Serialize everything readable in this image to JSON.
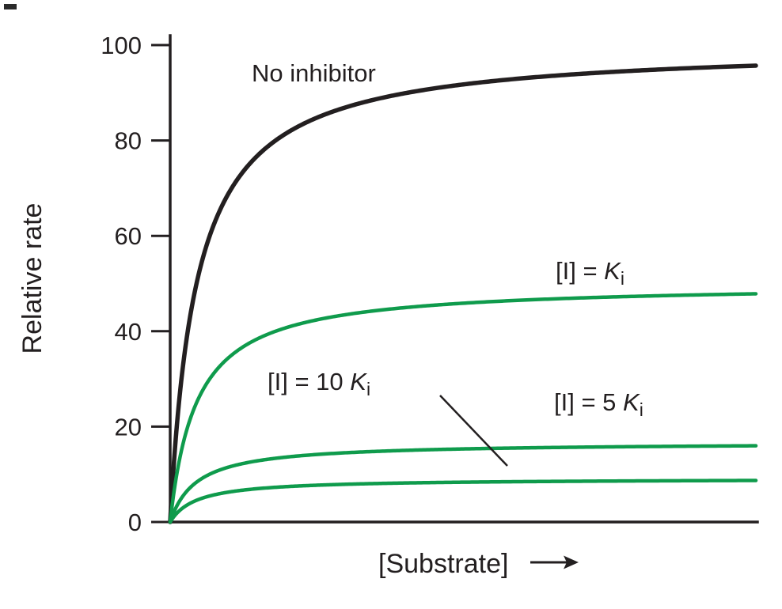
{
  "chart_data": {
    "type": "line",
    "title": "",
    "xlabel": "[Substrate]",
    "ylabel": "Relative rate",
    "xlim": [
      0,
      1
    ],
    "ylim": [
      0,
      100
    ],
    "yticks": [
      0,
      20,
      40,
      60,
      80,
      100
    ],
    "xticks": [],
    "grid": false,
    "legend_position": "inline-curve-labels",
    "curve_model": "michaelis-menten: v = vmax * s / (km + s), s = normalized [Substrate] 0..1",
    "series": [
      {
        "id": "no-inhibitor",
        "name": "No inhibitor",
        "vmax": 100,
        "km": 0.045,
        "color": "#231f20",
        "stroke_width": 5.5
      },
      {
        "id": "i-equals-ki",
        "name": "[I] = Ki",
        "vmax": 50,
        "km": 0.045,
        "color": "#0f9b4c",
        "stroke_width": 4.5
      },
      {
        "id": "i-equals-5ki",
        "name": "[I] = 5 Ki",
        "vmax": 16.7,
        "km": 0.045,
        "color": "#0f9b4c",
        "stroke_width": 4.5
      },
      {
        "id": "i-equals-10ki",
        "name": "[I] = 10 Ki",
        "vmax": 9.1,
        "km": 0.045,
        "color": "#0f9b4c",
        "stroke_width": 4.5
      }
    ]
  },
  "axes": {
    "y_title": "Relative rate",
    "x_title": "[Substrate]",
    "y_tick_labels": [
      "0",
      "20",
      "40",
      "60",
      "80",
      "100"
    ]
  },
  "labels": {
    "no_inhibitor": "No inhibitor",
    "ki": {
      "prefix": "[I] = ",
      "symbol": "K",
      "subscript": "i"
    },
    "ki10": {
      "prefix": "[I] = 10 ",
      "symbol": "K",
      "subscript": "i"
    },
    "ki5": {
      "prefix": "[I] = 5 ",
      "symbol": "K",
      "subscript": "i"
    }
  },
  "colors": {
    "ink": "#231f20",
    "green": "#0f9b4c",
    "background": "#ffffff"
  }
}
